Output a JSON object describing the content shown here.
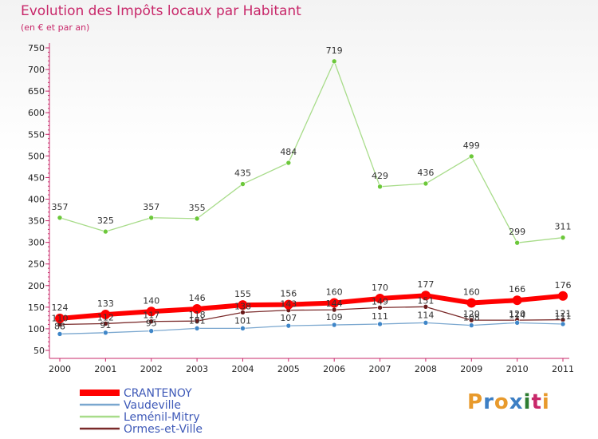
{
  "header": {
    "title": "Evolution des Impôts locaux par Habitant",
    "subtitle": "(en € et par an)"
  },
  "logo": {
    "text": "Proxiti",
    "colors": [
      "#e89a2c",
      "#3d7fc4",
      "#e89a2c",
      "#3d7fc4",
      "#2e7d32",
      "#c8286a",
      "#e89a2c"
    ]
  },
  "chart_data": {
    "type": "line",
    "categories": [
      "2000",
      "2001",
      "2002",
      "2003",
      "2004",
      "2005",
      "2006",
      "2007",
      "2008",
      "2009",
      "2010",
      "2011"
    ],
    "ylim": [
      50,
      750
    ],
    "yticks": [
      50,
      100,
      150,
      200,
      250,
      300,
      350,
      400,
      450,
      500,
      550,
      600,
      650,
      700,
      750
    ],
    "grid": false,
    "legend_position": "bottom-left",
    "series": [
      {
        "name": "CRANTENOY",
        "color": "#ff0000",
        "marker": "#ff0000",
        "width": 6,
        "r": 6,
        "values": [
          124,
          133,
          140,
          146,
          155,
          156,
          160,
          170,
          177,
          160,
          166,
          176
        ],
        "labels": true
      },
      {
        "name": "Vaudeville",
        "color": "#7aa7cf",
        "marker": "#3f86c8",
        "width": 1.3,
        "r": 3,
        "values": [
          88,
          91,
          95,
          101,
          101,
          107,
          109,
          111,
          114,
          108,
          114,
          111
        ],
        "labels": true
      },
      {
        "name": "Leménil-Mitry",
        "color": "#a8dc8a",
        "marker": "#6cc83a",
        "width": 1.3,
        "r": 3,
        "values": [
          357,
          325,
          357,
          355,
          435,
          484,
          719,
          429,
          436,
          499,
          299,
          311
        ],
        "labels": true
      },
      {
        "name": "Ormes-et-Ville",
        "color": "#7a2a2a",
        "marker": "#6a1a1a",
        "width": 1.3,
        "r": 3,
        "values": [
          110,
          112,
          117,
          118,
          138,
          143,
          144,
          149,
          151,
          120,
          120,
          121
        ],
        "labels": true
      }
    ]
  }
}
